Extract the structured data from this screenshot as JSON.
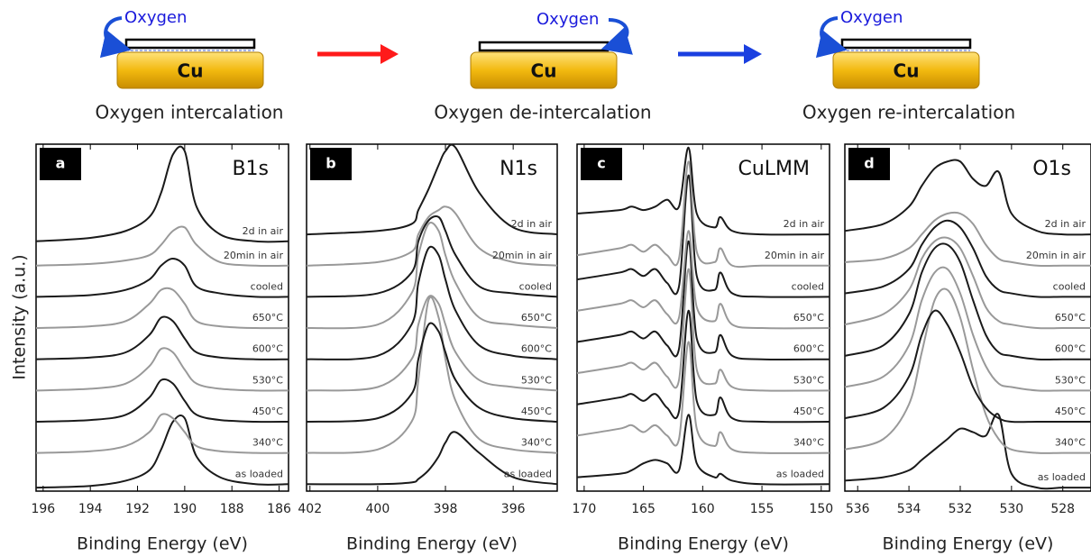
{
  "diagram": {
    "steps": [
      {
        "oxygen": "Oxygen",
        "metal": "Cu",
        "caption": "Oxygen intercalation"
      },
      {
        "oxygen": "Oxygen",
        "metal": "Cu",
        "caption": "Oxygen de-intercalation"
      },
      {
        "oxygen": "Oxygen",
        "metal": "Cu",
        "caption": "Oxygen re-intercalation"
      }
    ]
  },
  "chart_data": [
    {
      "type": "line",
      "panel_label": "a",
      "title": "B1s",
      "xlabel": "Binding Energy (eV)",
      "ylabel": "Intensity (a.u.)",
      "xlim": [
        196.3,
        185.6
      ],
      "xticks": [
        196,
        194,
        192,
        190,
        188,
        186
      ],
      "ylim": [
        0,
        100
      ],
      "x": [
        196.3,
        194,
        192.5,
        191.5,
        191,
        190.5,
        190,
        189.5,
        188.5,
        187,
        185.6
      ],
      "series": [
        {
          "name": "as loaded",
          "color": "#1a1a1a",
          "values": [
            1,
            1.5,
            3,
            6,
            12,
            20,
            21,
            10,
            4,
            2,
            2
          ]
        },
        {
          "name": "340°C",
          "color": "#999999",
          "values": [
            11,
            11.5,
            13,
            17,
            22,
            21,
            17,
            13,
            11.5,
            11,
            11
          ]
        },
        {
          "name": "450°C",
          "color": "#1a1a1a",
          "values": [
            20,
            20.5,
            22,
            27,
            32,
            31,
            26,
            22,
            20.5,
            20,
            20
          ]
        },
        {
          "name": "530°C",
          "color": "#999999",
          "values": [
            29,
            29.5,
            31,
            36,
            41,
            40,
            35,
            31,
            29.5,
            29,
            29
          ]
        },
        {
          "name": "600°C",
          "color": "#1a1a1a",
          "values": [
            38,
            38.5,
            40,
            45,
            50,
            49,
            44,
            40,
            38.5,
            38,
            38
          ]
        },
        {
          "name": "650°C",
          "color": "#999999",
          "values": [
            47,
            47.5,
            49,
            54,
            58,
            58,
            54,
            49,
            47.5,
            47,
            47
          ]
        },
        {
          "name": "cooled",
          "color": "#1a1a1a",
          "values": [
            56,
            56.5,
            58,
            61,
            65,
            67,
            65,
            59,
            57,
            56,
            56
          ]
        },
        {
          "name": "20min in air",
          "color": "#999999",
          "values": [
            65,
            65.5,
            66.5,
            68,
            71,
            75,
            76,
            71,
            66,
            65,
            65
          ]
        },
        {
          "name": "2d in air",
          "color": "#1a1a1a",
          "values": [
            72,
            73,
            75,
            79,
            86,
            97,
            98,
            82,
            74,
            72,
            72
          ]
        }
      ]
    },
    {
      "type": "line",
      "panel_label": "b",
      "title": "N1s",
      "xlabel": "Binding Energy (eV)",
      "xlim": [
        402.1,
        394.7
      ],
      "xticks": [
        402,
        400,
        398,
        396
      ],
      "ylim": [
        0,
        100
      ],
      "x": [
        402.1,
        400,
        399,
        398.8,
        398.5,
        398.2,
        398,
        397.7,
        397,
        396,
        394.7
      ],
      "series": [
        {
          "name": "as loaded",
          "color": "#1a1a1a",
          "values": [
            2,
            2,
            2.5,
            3.5,
            6,
            10,
            14,
            17,
            11,
            4,
            2
          ]
        },
        {
          "name": "340°C",
          "color": "#999999",
          "values": [
            11,
            12,
            20,
            32,
            55,
            50,
            38,
            26,
            15,
            12,
            11
          ]
        },
        {
          "name": "450°C",
          "color": "#1a1a1a",
          "values": [
            20,
            21,
            28,
            38,
            48,
            46,
            40,
            32,
            24,
            21,
            20
          ]
        },
        {
          "name": "530°C",
          "color": "#999999",
          "values": [
            29,
            30,
            38,
            48,
            56,
            54,
            48,
            40,
            32,
            30,
            29
          ]
        },
        {
          "name": "600°C",
          "color": "#1a1a1a",
          "values": [
            38,
            39,
            48,
            60,
            70,
            68,
            61,
            52,
            42,
            39,
            38
          ]
        },
        {
          "name": "650°C",
          "color": "#999999",
          "values": [
            47,
            48,
            57,
            68,
            77,
            75,
            68,
            60,
            50,
            48,
            47
          ]
        },
        {
          "name": "cooled",
          "color": "#1a1a1a",
          "values": [
            56,
            57,
            63,
            72,
            78,
            79,
            75,
            68,
            59,
            57,
            56
          ]
        },
        {
          "name": "20min in air",
          "color": "#999999",
          "values": [
            65,
            66,
            69,
            74,
            79,
            81,
            82,
            80,
            70,
            66,
            65
          ]
        },
        {
          "name": "2d in air",
          "color": "#1a1a1a",
          "values": [
            74,
            75,
            77,
            81,
            87,
            94,
            98,
            99,
            86,
            76,
            74
          ]
        }
      ]
    },
    {
      "type": "line",
      "panel_label": "c",
      "title": "CuLMM",
      "xlabel": "Binding Energy (eV)",
      "xlim": [
        170.6,
        149.3
      ],
      "xticks": [
        170,
        165,
        160,
        155,
        150
      ],
      "ylim": [
        0,
        100
      ],
      "x": [
        170.6,
        167,
        166,
        165,
        164,
        163,
        162,
        161.2,
        160.5,
        159,
        158.5,
        157.5,
        155,
        149.3
      ],
      "series": [
        {
          "name": "as loaded",
          "color": "#1a1a1a",
          "values": [
            4,
            5,
            6,
            8,
            9,
            8,
            6,
            22,
            8,
            4,
            5,
            3,
            2,
            2
          ]
        },
        {
          "name": "340°C",
          "color": "#999999",
          "values": [
            16,
            18,
            19,
            17,
            19,
            16,
            15,
            43,
            18,
            13,
            17,
            12,
            11,
            11
          ]
        },
        {
          "name": "450°C",
          "color": "#1a1a1a",
          "values": [
            25,
            27,
            28,
            26,
            28,
            24,
            23,
            52,
            26,
            22,
            27,
            21,
            20,
            20
          ]
        },
        {
          "name": "530°C",
          "color": "#999999",
          "values": [
            34,
            36,
            37,
            35,
            37,
            33,
            32,
            64,
            35,
            31,
            35,
            30,
            29,
            29
          ]
        },
        {
          "name": "600°C",
          "color": "#1a1a1a",
          "values": [
            43,
            45,
            46,
            44,
            46,
            42,
            41,
            72,
            44,
            40,
            45,
            39,
            38,
            38
          ]
        },
        {
          "name": "650°C",
          "color": "#999999",
          "values": [
            52,
            54,
            55,
            53,
            55,
            51,
            50,
            75,
            53,
            49,
            54,
            48,
            47,
            47
          ]
        },
        {
          "name": "cooled",
          "color": "#1a1a1a",
          "values": [
            61,
            63,
            64,
            62,
            64,
            60,
            59,
            91,
            62,
            58,
            63,
            57,
            56,
            56
          ]
        },
        {
          "name": "20min in air",
          "color": "#999999",
          "values": [
            68,
            70,
            71,
            69,
            71,
            68,
            67,
            95,
            69,
            66,
            70,
            65,
            65,
            65
          ]
        },
        {
          "name": "2d in air",
          "color": "#1a1a1a",
          "values": [
            80,
            81,
            82,
            81,
            82,
            84,
            82,
            99,
            80,
            76,
            79,
            75,
            74,
            74
          ]
        }
      ]
    },
    {
      "type": "line",
      "panel_label": "d",
      "title": "O1s",
      "xlabel": "Binding Energy (eV)",
      "xlim": [
        536.5,
        526.9
      ],
      "xticks": [
        536,
        534,
        532,
        530,
        528
      ],
      "ylim": [
        0,
        100
      ],
      "x": [
        536.5,
        535,
        534,
        533.5,
        533,
        532.5,
        532,
        531.5,
        531,
        530.5,
        530,
        529,
        528,
        526.9
      ],
      "series": [
        {
          "name": "as loaded",
          "color": "#1a1a1a",
          "values": [
            3,
            4,
            6,
            9,
            12,
            15,
            18,
            17,
            16,
            22,
            5,
            1,
            1,
            1
          ]
        },
        {
          "name": "340°C",
          "color": "#999999",
          "values": [
            12,
            15,
            25,
            40,
            55,
            58,
            50,
            35,
            22,
            15,
            12,
            11,
            11,
            11
          ]
        },
        {
          "name": "450°C",
          "color": "#1a1a1a",
          "values": [
            21,
            24,
            33,
            45,
            52,
            48,
            40,
            30,
            24,
            21,
            20,
            20,
            20,
            20
          ]
        },
        {
          "name": "530°C",
          "color": "#999999",
          "values": [
            30,
            33,
            42,
            55,
            63,
            64,
            57,
            45,
            36,
            31,
            30,
            29,
            29,
            29
          ]
        },
        {
          "name": "600°C",
          "color": "#1a1a1a",
          "values": [
            39,
            42,
            51,
            63,
            70,
            71,
            66,
            55,
            45,
            40,
            39,
            38,
            38,
            38
          ]
        },
        {
          "name": "650°C",
          "color": "#999999",
          "values": [
            48,
            51,
            58,
            67,
            72,
            73,
            70,
            62,
            53,
            49,
            48,
            47,
            47,
            47
          ]
        },
        {
          "name": "cooled",
          "color": "#1a1a1a",
          "values": [
            57,
            59,
            64,
            71,
            76,
            78,
            76,
            70,
            62,
            58,
            57,
            56,
            56,
            56
          ]
        },
        {
          "name": "20min in air",
          "color": "#999999",
          "values": [
            66,
            67,
            70,
            74,
            78,
            80,
            80,
            77,
            71,
            67,
            66,
            65,
            65,
            65
          ]
        },
        {
          "name": "2d in air",
          "color": "#1a1a1a",
          "values": [
            75,
            77,
            82,
            88,
            93,
            95,
            95,
            90,
            88,
            92,
            80,
            75,
            74,
            74
          ]
        }
      ]
    }
  ]
}
